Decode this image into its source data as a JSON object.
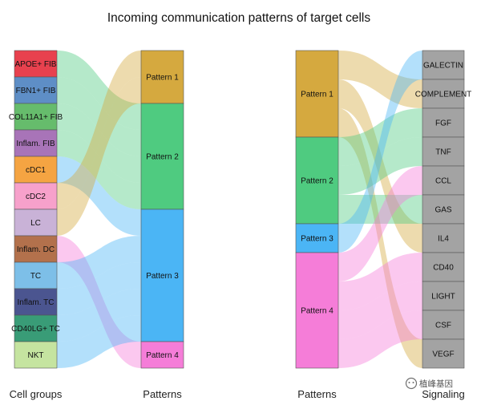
{
  "title": "Incoming communication patterns of target cells",
  "watermark": "植峰基因",
  "chart_data": [
    {
      "type": "sankey",
      "left_title": "Cell groups",
      "right_title": "Patterns",
      "left_nodes": [
        {
          "name": "APOE+ FIB",
          "color": "#E8414E"
        },
        {
          "name": "FBN1+ FIB",
          "color": "#5E8EC6"
        },
        {
          "name": "COL11A1+ FIB",
          "color": "#66BC6C"
        },
        {
          "name": "Inflam. FIB",
          "color": "#A874B8"
        },
        {
          "name": "cDC1",
          "color": "#F5A442"
        },
        {
          "name": "cDC2",
          "color": "#F7A1CB"
        },
        {
          "name": "LC",
          "color": "#C9B2D7"
        },
        {
          "name": "Inflam. DC",
          "color": "#B3714C"
        },
        {
          "name": "TC",
          "color": "#7DBFE8"
        },
        {
          "name": "Inflam. TC",
          "color": "#4B5590"
        },
        {
          "name": "CD40LG+ TC",
          "color": "#399C77"
        },
        {
          "name": "NKT",
          "color": "#C5E4A0"
        }
      ],
      "right_nodes": [
        {
          "name": "Pattern 1",
          "color": "#D5A93F"
        },
        {
          "name": "Pattern 2",
          "color": "#4FCB80"
        },
        {
          "name": "Pattern 3",
          "color": "#4BB5F5"
        },
        {
          "name": "Pattern 4",
          "color": "#F57DD8"
        }
      ],
      "links": [
        {
          "source": "APOE+ FIB",
          "target": "Pattern 2",
          "value": 1
        },
        {
          "source": "FBN1+ FIB",
          "target": "Pattern 2",
          "value": 1
        },
        {
          "source": "COL11A1+ FIB",
          "target": "Pattern 2",
          "value": 1
        },
        {
          "source": "Inflam. FIB",
          "target": "Pattern 2",
          "value": 1
        },
        {
          "source": "cDC1",
          "target": "Pattern 3",
          "value": 1
        },
        {
          "source": "cDC2",
          "target": "Pattern 1",
          "value": 1
        },
        {
          "source": "LC",
          "target": "Pattern 1",
          "value": 1
        },
        {
          "source": "Inflam. DC",
          "target": "Pattern 4",
          "value": 1
        },
        {
          "source": "TC",
          "target": "Pattern 3",
          "value": 1
        },
        {
          "source": "Inflam. TC",
          "target": "Pattern 3",
          "value": 1
        },
        {
          "source": "CD40LG+ TC",
          "target": "Pattern 3",
          "value": 1
        },
        {
          "source": "NKT",
          "target": "Pattern 3",
          "value": 1
        }
      ]
    },
    {
      "type": "sankey",
      "left_title": "Patterns",
      "right_title": "Signaling",
      "left_nodes": [
        {
          "name": "Pattern 1",
          "color": "#D5A93F"
        },
        {
          "name": "Pattern 2",
          "color": "#4FCB80"
        },
        {
          "name": "Pattern 3",
          "color": "#4BB5F5"
        },
        {
          "name": "Pattern 4",
          "color": "#F57DD8"
        }
      ],
      "right_nodes": [
        {
          "name": "GALECTIN",
          "color": "#A3A3A3"
        },
        {
          "name": "COMPLEMENT",
          "color": "#A3A3A3"
        },
        {
          "name": "FGF",
          "color": "#A3A3A3"
        },
        {
          "name": "TNF",
          "color": "#A3A3A3"
        },
        {
          "name": "CCL",
          "color": "#A3A3A3"
        },
        {
          "name": "GAS",
          "color": "#A3A3A3"
        },
        {
          "name": "IL4",
          "color": "#A3A3A3"
        },
        {
          "name": "CD40",
          "color": "#A3A3A3"
        },
        {
          "name": "LIGHT",
          "color": "#A3A3A3"
        },
        {
          "name": "CSF",
          "color": "#A3A3A3"
        },
        {
          "name": "VEGF",
          "color": "#A3A3A3"
        }
      ],
      "links": [
        {
          "source": "Pattern 1",
          "target": "COMPLEMENT",
          "value": 1
        },
        {
          "source": "Pattern 1",
          "target": "IL4",
          "value": 1
        },
        {
          "source": "Pattern 1",
          "target": "VEGF",
          "value": 1
        },
        {
          "source": "Pattern 2",
          "target": "FGF",
          "value": 1
        },
        {
          "source": "Pattern 2",
          "target": "TNF",
          "value": 1
        },
        {
          "source": "Pattern 2",
          "target": "GAS",
          "value": 1
        },
        {
          "source": "Pattern 3",
          "target": "GALECTIN",
          "value": 1
        },
        {
          "source": "Pattern 4",
          "target": "CCL",
          "value": 1
        },
        {
          "source": "Pattern 4",
          "target": "CD40",
          "value": 1
        },
        {
          "source": "Pattern 4",
          "target": "LIGHT",
          "value": 1
        },
        {
          "source": "Pattern 4",
          "target": "CSF",
          "value": 1
        }
      ]
    }
  ]
}
